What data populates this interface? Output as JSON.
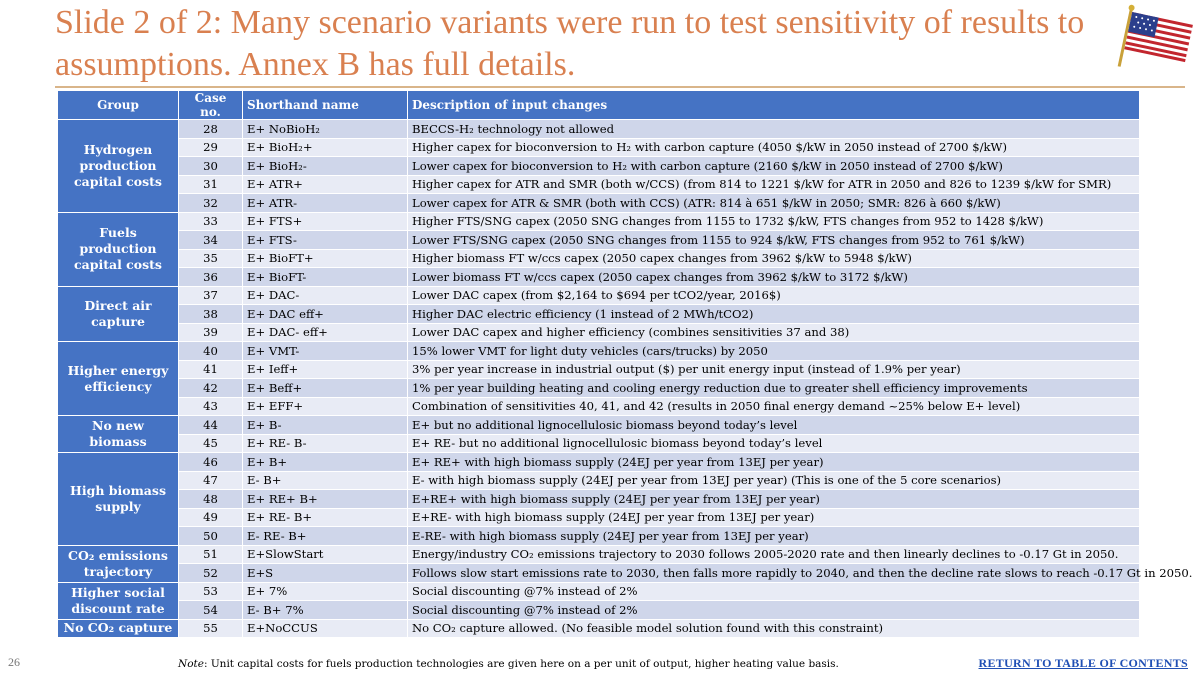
{
  "slide": {
    "title": "Slide 2 of 2: Many scenario variants were run to test sensitivity of results to assumptions. Annex B has full details.",
    "page_number": "26",
    "note_label": "Note",
    "note_text": ": Unit capital costs for fuels production technologies are given here on a per unit of output, higher heating value basis.",
    "toc_link": "RETURN TO TABLE OF CONTENTS",
    "flag_icon": "us-flag-icon"
  },
  "table": {
    "headers": [
      "Group",
      "Case no.",
      "Shorthand name",
      "Description of input changes"
    ],
    "groups": [
      {
        "label": "Hydrogen production capital costs",
        "rows": [
          {
            "case": "28",
            "name": "E+ NoBioH₂",
            "desc": "BECCS-H₂ technology not allowed"
          },
          {
            "case": "29",
            "name": "E+ BioH₂+",
            "desc": "Higher capex for bioconversion to H₂ with carbon capture (4050 $/kW in 2050 instead of 2700 $/kW)"
          },
          {
            "case": "30",
            "name": "E+ BioH₂-",
            "desc": "Lower capex for bioconversion to H₂ with carbon capture (2160 $/kW in 2050 instead of 2700 $/kW)"
          },
          {
            "case": "31",
            "name": "E+ ATR+",
            "desc": "Higher capex for ATR and SMR (both w/CCS) (from 814 to 1221 $/kW for ATR in 2050 and 826 to 1239 $/kW for SMR)"
          },
          {
            "case": "32",
            "name": "E+ ATR-",
            "desc": "Lower capex for ATR & SMR (both with CCS) (ATR: 814 à 651 $/kW in 2050; SMR: 826 à 660 $/kW)"
          }
        ]
      },
      {
        "label": "Fuels production capital costs",
        "rows": [
          {
            "case": "33",
            "name": "E+ FTS+",
            "desc": "Higher FTS/SNG capex (2050 SNG changes from 1155 to 1732 $/kW, FTS changes from 952 to 1428 $/kW)"
          },
          {
            "case": "34",
            "name": "E+ FTS-",
            "desc": "Lower FTS/SNG capex (2050 SNG changes from 1155 to 924 $/kW, FTS changes from 952 to 761 $/kW)"
          },
          {
            "case": "35",
            "name": "E+ BioFT+",
            "desc": "Higher biomass FT w/ccs capex (2050 capex changes from 3962 $/kW to 5948 $/kW)"
          },
          {
            "case": "36",
            "name": "E+ BioFT-",
            "desc": "Lower biomass FT w/ccs capex (2050 capex changes from 3962 $/kW to 3172 $/kW)"
          }
        ]
      },
      {
        "label": "Direct air capture",
        "rows": [
          {
            "case": "37",
            "name": "E+ DAC-",
            "desc": "Lower DAC capex (from $2,164 to $694 per tCO2/year, 2016$)"
          },
          {
            "case": "38",
            "name": "E+ DAC eff+",
            "desc": "Higher DAC electric efficiency (1 instead of 2 MWh/tCO2)"
          },
          {
            "case": "39",
            "name": "E+ DAC- eff+",
            "desc": "Lower DAC capex and higher efficiency (combines sensitivities 37 and 38)"
          }
        ]
      },
      {
        "label": "Higher energy efficiency",
        "rows": [
          {
            "case": "40",
            "name": "E+ VMT-",
            "desc": "15% lower VMT for light duty vehicles (cars/trucks) by 2050"
          },
          {
            "case": "41",
            "name": "E+ Ieff+",
            "desc": "3% per year increase in industrial output ($) per unit energy input (instead of 1.9% per year)"
          },
          {
            "case": "42",
            "name": "E+ Beff+",
            "desc": "1% per year building heating and cooling energy reduction due to greater shell efficiency improvements"
          },
          {
            "case": "43",
            "name": "E+ EFF+",
            "desc": "Combination of sensitivities 40, 41, and 42 (results in 2050 final energy demand ~25% below E+ level)"
          }
        ]
      },
      {
        "label": "No new biomass",
        "rows": [
          {
            "case": "44",
            "name": "E+ B-",
            "desc": "E+ but no additional lignocellulosic biomass beyond today’s level"
          },
          {
            "case": "45",
            "name": "E+ RE- B-",
            "desc": "E+ RE- but no additional lignocellulosic biomass beyond today’s level"
          }
        ]
      },
      {
        "label": "High biomass supply",
        "rows": [
          {
            "case": "46",
            "name": "E+ B+",
            "desc": "E+ RE+ with high biomass supply (24EJ per year from 13EJ per year)"
          },
          {
            "case": "47",
            "name": "E- B+",
            "desc": "E- with high biomass supply (24EJ per year from 13EJ per year) (This is one of the 5 core scenarios)"
          },
          {
            "case": "48",
            "name": "E+ RE+ B+",
            "desc": "E+RE+ with high biomass supply (24EJ per year from 13EJ per year)"
          },
          {
            "case": "49",
            "name": "E+ RE- B+",
            "desc": "E+RE- with high biomass supply (24EJ per year from 13EJ per year)"
          },
          {
            "case": "50",
            "name": "E- RE- B+",
            "desc": "E-RE- with high biomass supply (24EJ per year from 13EJ per year)"
          }
        ]
      },
      {
        "label": "CO₂ emissions trajectory",
        "rows": [
          {
            "case": "51",
            "name": "E+SlowStart",
            "desc": "Energy/industry CO₂ emissions trajectory to 2030 follows 2005-2020 rate and then linearly declines to -0.17 Gt in 2050."
          },
          {
            "case": "52",
            "name": "E+S",
            "desc": "Follows slow start emissions rate to 2030, then falls more rapidly to 2040, and then the decline rate slows to reach -0.17 Gt in 2050."
          }
        ]
      },
      {
        "label": "Higher social discount rate",
        "rows": [
          {
            "case": "53",
            "name": "E+ 7%",
            "desc": "Social discounting @7% instead of 2%"
          },
          {
            "case": "54",
            "name": "E- B+ 7%",
            "desc": "Social discounting @7% instead of 2%"
          }
        ]
      },
      {
        "label": "No CO₂ capture",
        "rows": [
          {
            "case": "55",
            "name": "E+NoCCUS",
            "desc": "No CO₂ capture allowed. (No feasible model solution found with this constraint)"
          }
        ]
      }
    ]
  }
}
